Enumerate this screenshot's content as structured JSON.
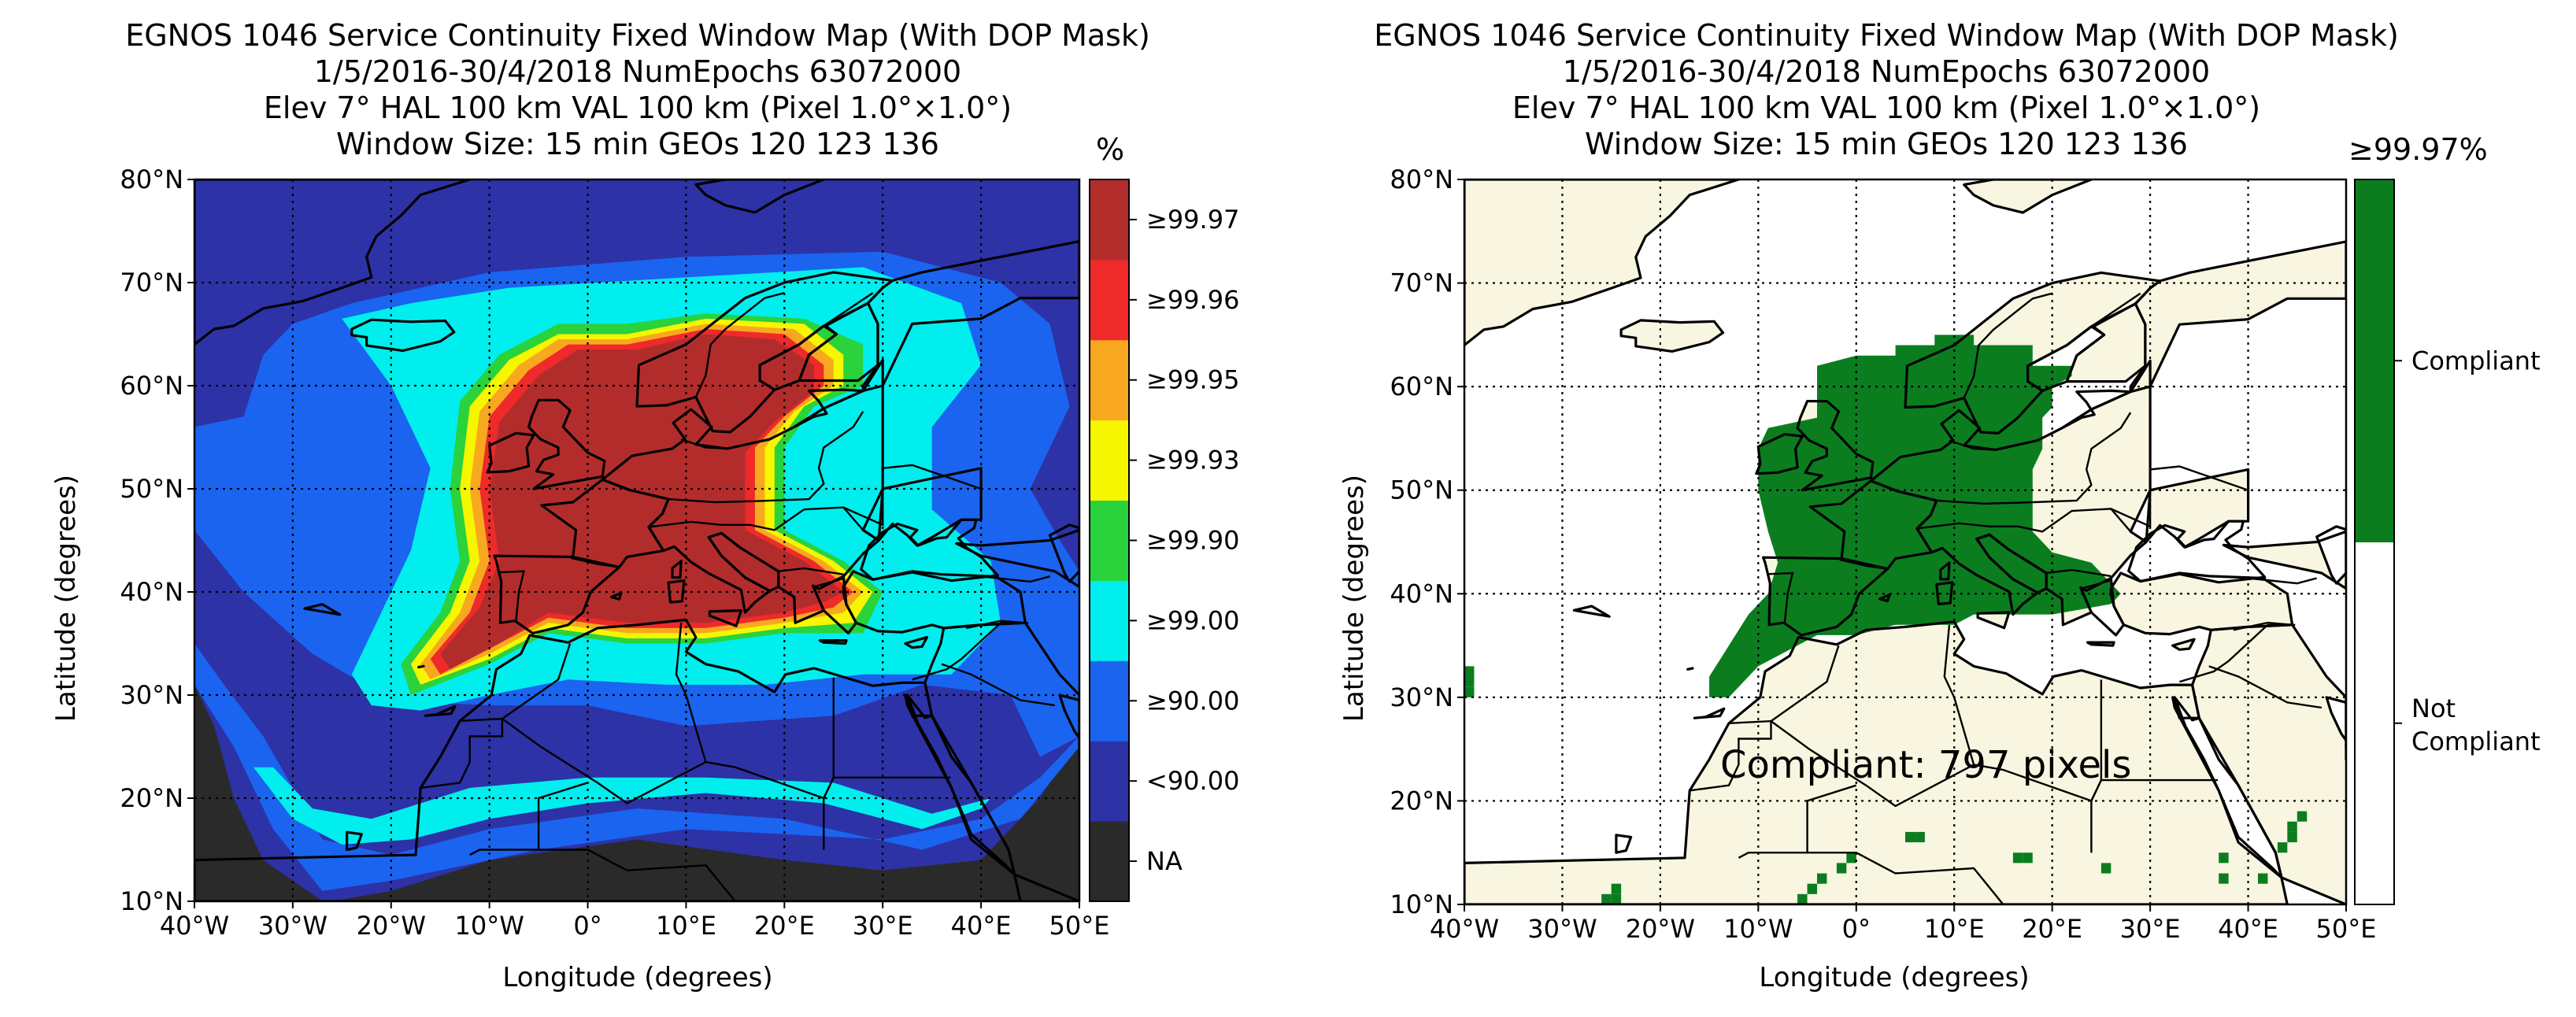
{
  "chart_data": [
    {
      "type": "heatmap",
      "title": [
        "EGNOS 1046 Service Continuity Fixed Window Map (With DOP Mask)",
        "1/5/2016-30/4/2018 NumEpochs 63072000",
        "Elev 7° HAL 100 km VAL 100 km (Pixel 1.0°×1.0°)",
        "Window Size: 15 min GEOs 120 123 136"
      ],
      "xlabel": "Longitude (degrees)",
      "ylabel": "Latitude (degrees)",
      "xlim": [
        -40,
        50
      ],
      "ylim": [
        10,
        80
      ],
      "xticks": [
        "40°W",
        "30°W",
        "20°W",
        "10°W",
        "0°",
        "10°E",
        "20°E",
        "30°E",
        "40°E",
        "50°E"
      ],
      "yticks": [
        "10°N",
        "20°N",
        "30°N",
        "40°N",
        "50°N",
        "60°N",
        "70°N",
        "80°N"
      ],
      "grid": true,
      "colorbar_unit": "%",
      "colorbar": [
        {
          "label": "NA",
          "color": "#2a2a2a"
        },
        {
          "label": "<90.00",
          "color": "#2d32a6"
        },
        {
          "label": "≥90.00",
          "color": "#1a64f0"
        },
        {
          "label": "≥99.00",
          "color": "#00eeee"
        },
        {
          "label": "≥99.90",
          "color": "#2ad23c"
        },
        {
          "label": "≥99.93",
          "color": "#f6f600"
        },
        {
          "label": "≥99.95",
          "color": "#f8a81e"
        },
        {
          "label": "≥99.96",
          "color": "#ee2a2a"
        },
        {
          "label": "≥99.97",
          "color": "#b32c2c"
        }
      ]
    },
    {
      "type": "heatmap",
      "title": [
        "EGNOS 1046 Service Continuity Fixed Window Map (With DOP Mask)",
        "1/5/2016-30/4/2018 NumEpochs 63072000",
        "Elev 7° HAL 100 km VAL 100 km (Pixel 1.0°×1.0°)",
        "Window Size: 15 min GEOs 120 123 136"
      ],
      "xlabel": "Longitude (degrees)",
      "ylabel": "Latitude (degrees)",
      "xlim": [
        -40,
        50
      ],
      "ylim": [
        10,
        80
      ],
      "xticks": [
        "40°W",
        "30°W",
        "20°W",
        "10°W",
        "0°",
        "10°E",
        "20°E",
        "30°E",
        "40°E",
        "50°E"
      ],
      "yticks": [
        "10°N",
        "20°N",
        "30°N",
        "40°N",
        "50°N",
        "60°N",
        "70°N",
        "80°N"
      ],
      "grid": true,
      "colorbar_unit": "≥99.97%",
      "colorbar": [
        {
          "label": "Not Compliant",
          "color": "#ffffff"
        },
        {
          "label": "Compliant",
          "color": "#0b7d1f"
        }
      ],
      "annotation": "Compliant: 797 pixels",
      "compliant_pixels": 797
    }
  ]
}
